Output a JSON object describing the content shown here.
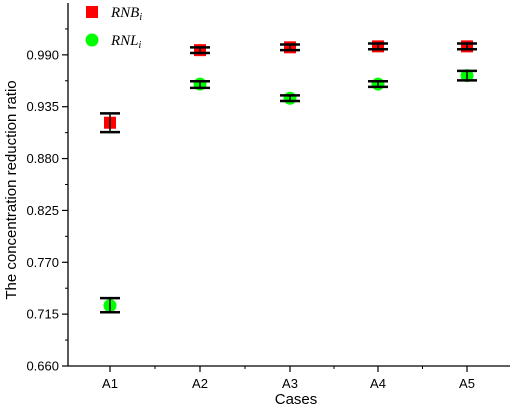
{
  "chart_data": {
    "type": "scatter",
    "xlabel": "Cases",
    "ylabel": "The concentration reduction ratio",
    "categories": [
      "A1",
      "A2",
      "A3",
      "A4",
      "A5"
    ],
    "ylim": [
      0.66,
      1.045
    ],
    "yticks": [
      "0.660",
      "0.715",
      "0.770",
      "0.825",
      "0.880",
      "0.935",
      "0.990"
    ],
    "grid": false,
    "legend_position": "top-left",
    "series": [
      {
        "name_main": "RNB",
        "name_sub": "i",
        "marker": "square",
        "color": "#ff0000",
        "values": [
          0.918,
          0.995,
          0.998,
          0.999,
          0.999
        ],
        "error_low": [
          0.908,
          0.992,
          0.995,
          0.996,
          0.996
        ],
        "error_high": [
          0.928,
          0.998,
          1.001,
          1.002,
          1.002
        ]
      },
      {
        "name_main": "RNL",
        "name_sub": "i",
        "marker": "circle",
        "color": "#00ff00",
        "values": [
          0.724,
          0.959,
          0.944,
          0.959,
          0.968
        ],
        "error_low": [
          0.717,
          0.955,
          0.941,
          0.956,
          0.963
        ],
        "error_high": [
          0.732,
          0.962,
          0.947,
          0.962,
          0.973
        ]
      }
    ]
  }
}
